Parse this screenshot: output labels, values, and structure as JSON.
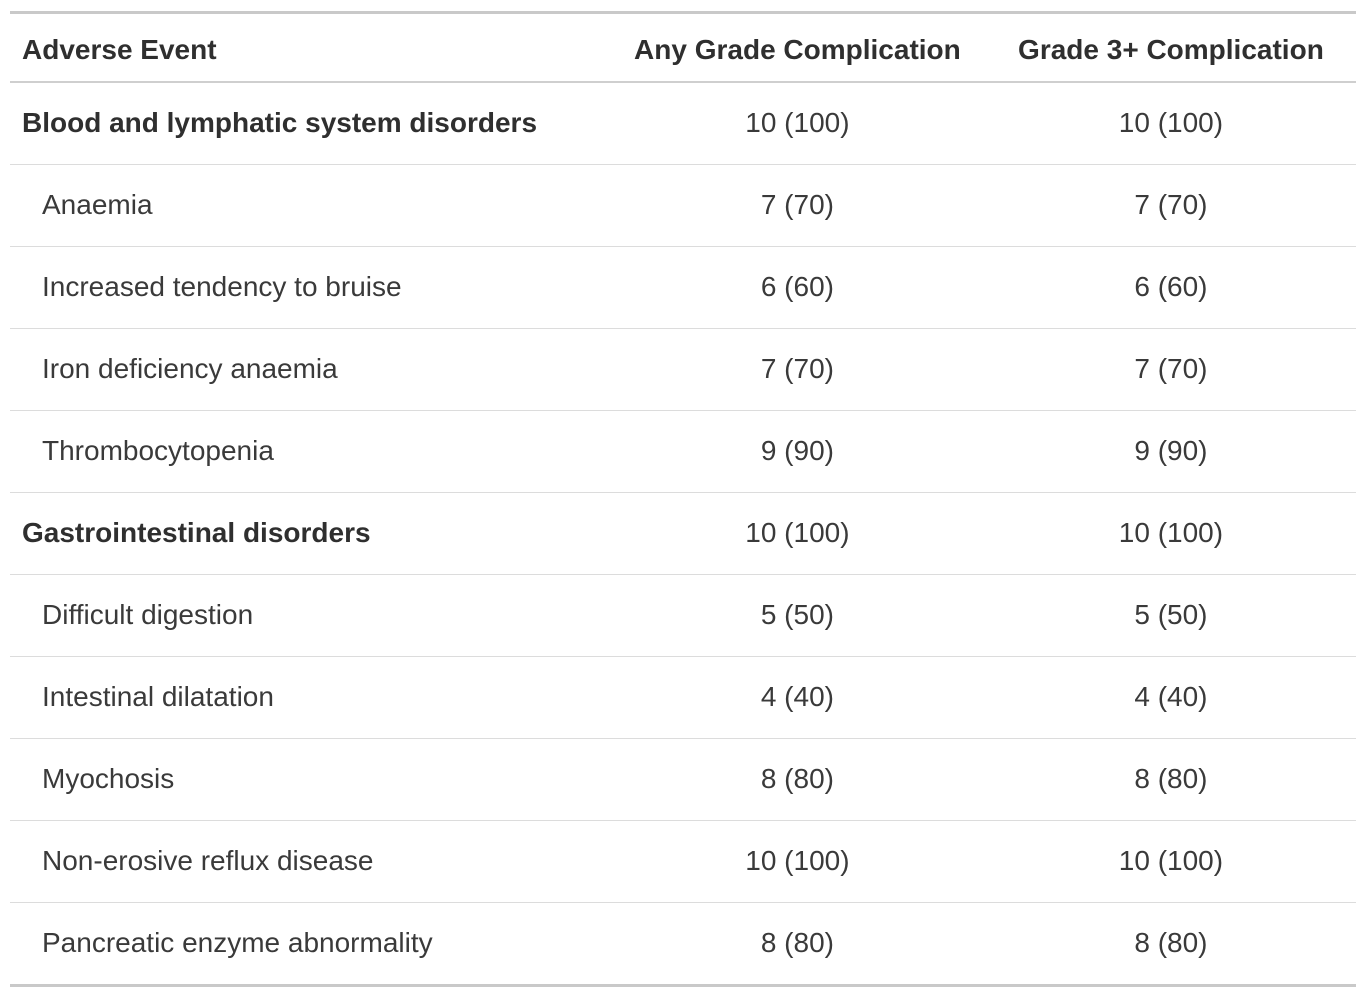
{
  "colors": {
    "background": "#ffffff",
    "text": "#3a3a3a",
    "heading_text": "#2f2f2f",
    "border_outer": "#c9c9c9",
    "border_header": "#cfcfcf",
    "border_row": "#dcdcdc"
  },
  "table": {
    "columns": [
      {
        "label": "Adverse Event"
      },
      {
        "label": "Any Grade Complication"
      },
      {
        "label": "Grade 3+ Complication"
      }
    ],
    "rows": [
      {
        "style": "section",
        "event": "Blood and lymphatic system disorders",
        "any_grade": "10 (100)",
        "grade_3plus": "10 (100)"
      },
      {
        "style": "item",
        "event": "Anaemia",
        "any_grade": "7 (70)",
        "grade_3plus": "7 (70)"
      },
      {
        "style": "item",
        "event": "Increased tendency to bruise",
        "any_grade": "6 (60)",
        "grade_3plus": "6 (60)"
      },
      {
        "style": "item",
        "event": "Iron deficiency anaemia",
        "any_grade": "7 (70)",
        "grade_3plus": "7 (70)"
      },
      {
        "style": "item",
        "event": "Thrombocytopenia",
        "any_grade": "9 (90)",
        "grade_3plus": "9 (90)"
      },
      {
        "style": "section",
        "event": "Gastrointestinal disorders",
        "any_grade": "10 (100)",
        "grade_3plus": "10 (100)"
      },
      {
        "style": "item",
        "event": "Difficult digestion",
        "any_grade": "5 (50)",
        "grade_3plus": "5 (50)"
      },
      {
        "style": "item",
        "event": "Intestinal dilatation",
        "any_grade": "4 (40)",
        "grade_3plus": "4 (40)"
      },
      {
        "style": "item",
        "event": "Myochosis",
        "any_grade": "8 (80)",
        "grade_3plus": "8 (80)"
      },
      {
        "style": "item",
        "event": "Non-erosive reflux disease",
        "any_grade": "10 (100)",
        "grade_3plus": "10 (100)"
      },
      {
        "style": "item",
        "event": "Pancreatic enzyme abnormality",
        "any_grade": "8 (80)",
        "grade_3plus": "8 (80)"
      }
    ]
  }
}
